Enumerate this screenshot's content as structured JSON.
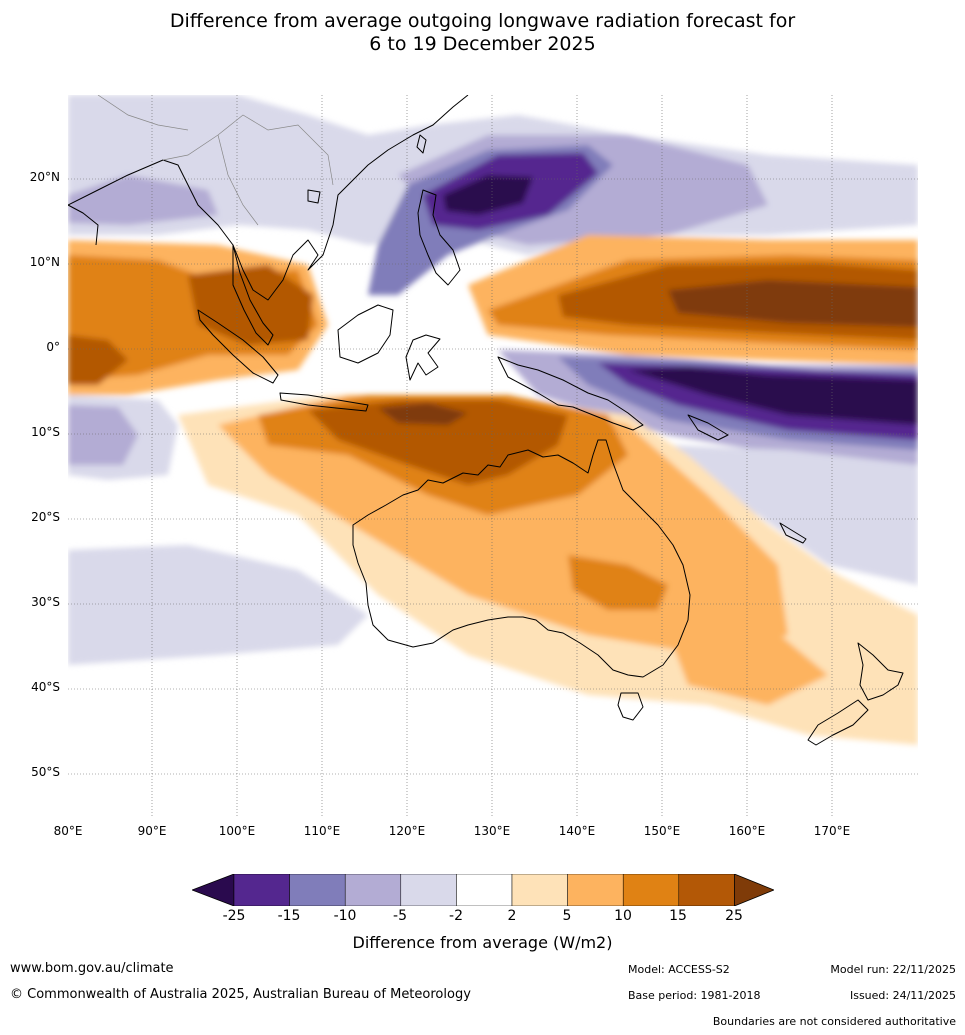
{
  "title": {
    "line1": "Difference from average outgoing longwave radiation forecast for",
    "line2": "6 to 19 December 2025"
  },
  "map": {
    "lat_labels": [
      "20°N",
      "10°N",
      "0°",
      "10°S",
      "20°S",
      "30°S",
      "40°S",
      "50°S"
    ],
    "lon_labels": [
      "80°E",
      "90°E",
      "100°E",
      "110°E",
      "120°E",
      "130°E",
      "140°E",
      "150°E",
      "160°E",
      "170°E"
    ]
  },
  "colorbar": {
    "ticks": [
      "-25",
      "-15",
      "-10",
      "-5",
      "-2",
      "2",
      "5",
      "10",
      "15",
      "25"
    ],
    "colors": [
      "#2a0a4e",
      "#54278f",
      "#807dba",
      "#b3acd4",
      "#d9d9ea",
      "#ffffff",
      "#fee2b8",
      "#fdb35f",
      "#e08214",
      "#b35806",
      "#7f3b08"
    ],
    "label": "Difference from average (W/m2)"
  },
  "footer": {
    "url": "www.bom.gov.au/climate",
    "copyright": "© Commonwealth of Australia 2025, Australian Bureau of Meteorology",
    "model": "Model: ACCESS-S2",
    "model_run": "Model run: 22/11/2025",
    "base_period": "Base period: 1981-2018",
    "issued": "Issued: 24/11/2025",
    "disclaimer": "Boundaries are not considered authoritative"
  }
}
